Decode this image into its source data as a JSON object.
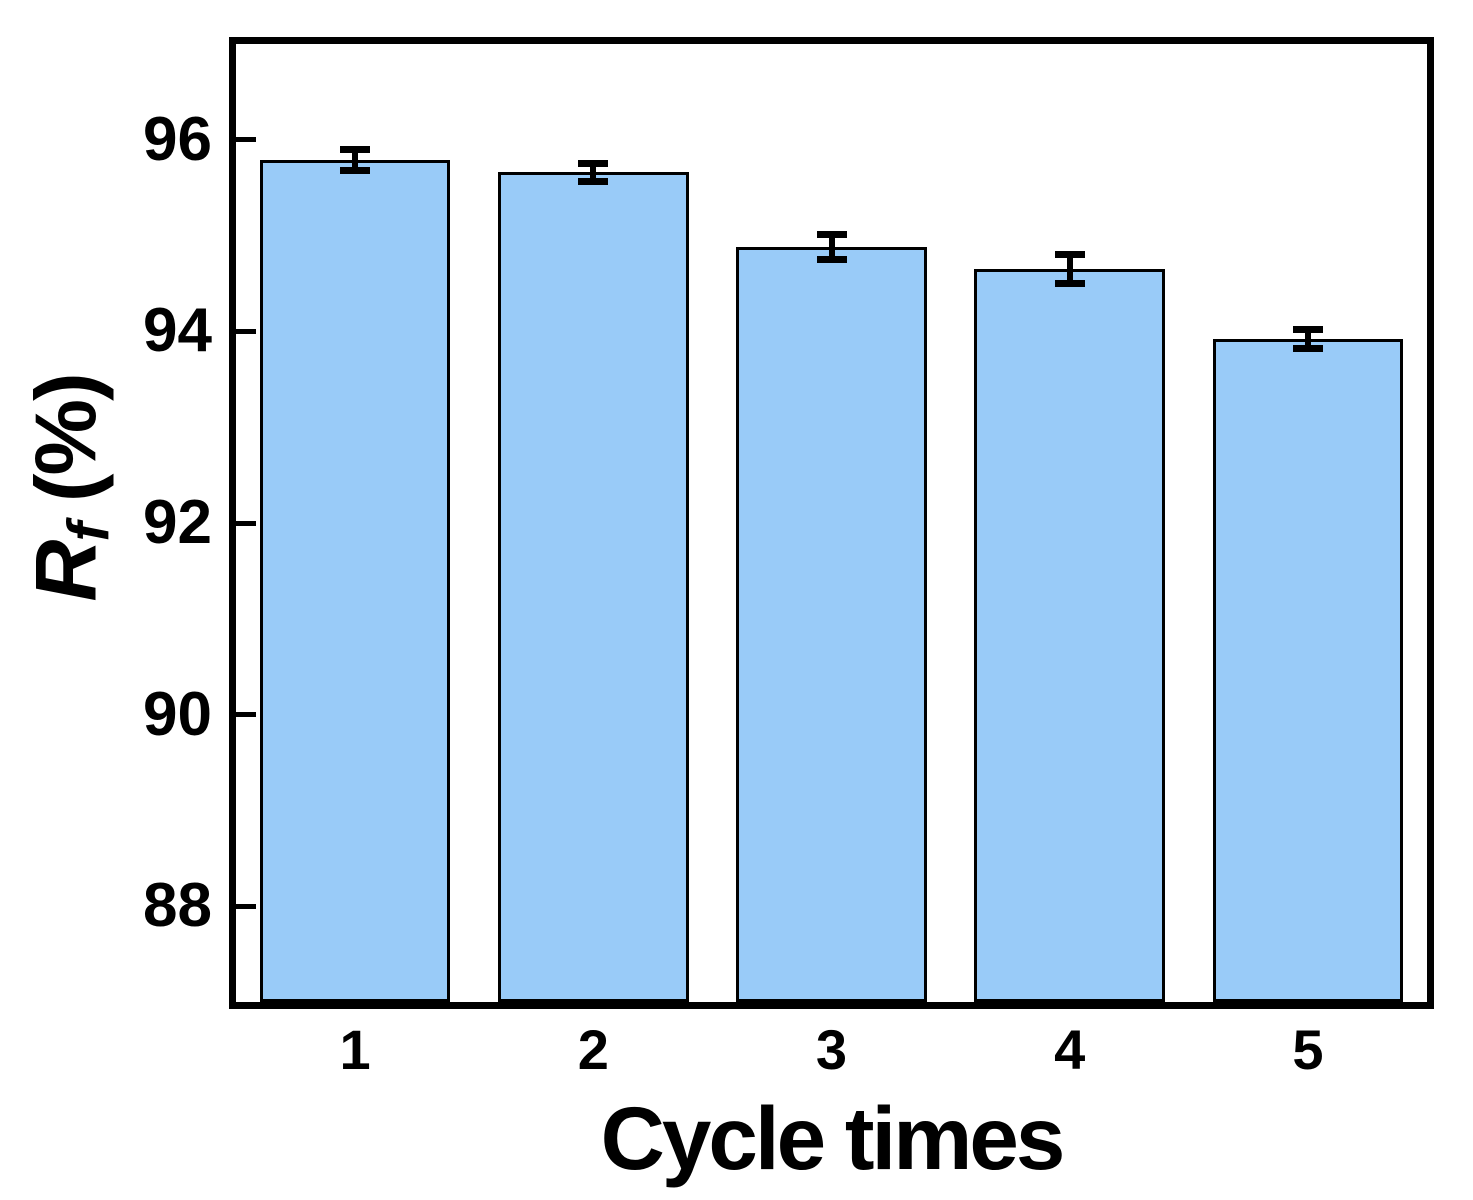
{
  "chart_data": {
    "type": "bar",
    "xlabel": "Cycle times",
    "ylabel": {
      "symbol": "R",
      "subscript": "f",
      "suffix": " (%)"
    },
    "categories": [
      "1",
      "2",
      "3",
      "4",
      "5"
    ],
    "values": [
      95.79,
      95.66,
      94.88,
      94.65,
      93.92
    ],
    "errors": [
      0.15,
      0.13,
      0.17,
      0.19,
      0.14
    ],
    "ylim": [
      87,
      97
    ],
    "yticks": [
      88,
      90,
      92,
      94,
      96
    ],
    "xlim": [
      0.5,
      5.5
    ],
    "grid": false,
    "legend": null,
    "colors": {
      "bar_fill": "#99cbf8",
      "bar_edge": "#000000",
      "error_bar": "#000000",
      "axis": "#000000",
      "text": "#000000",
      "background": "#ffffff"
    }
  }
}
